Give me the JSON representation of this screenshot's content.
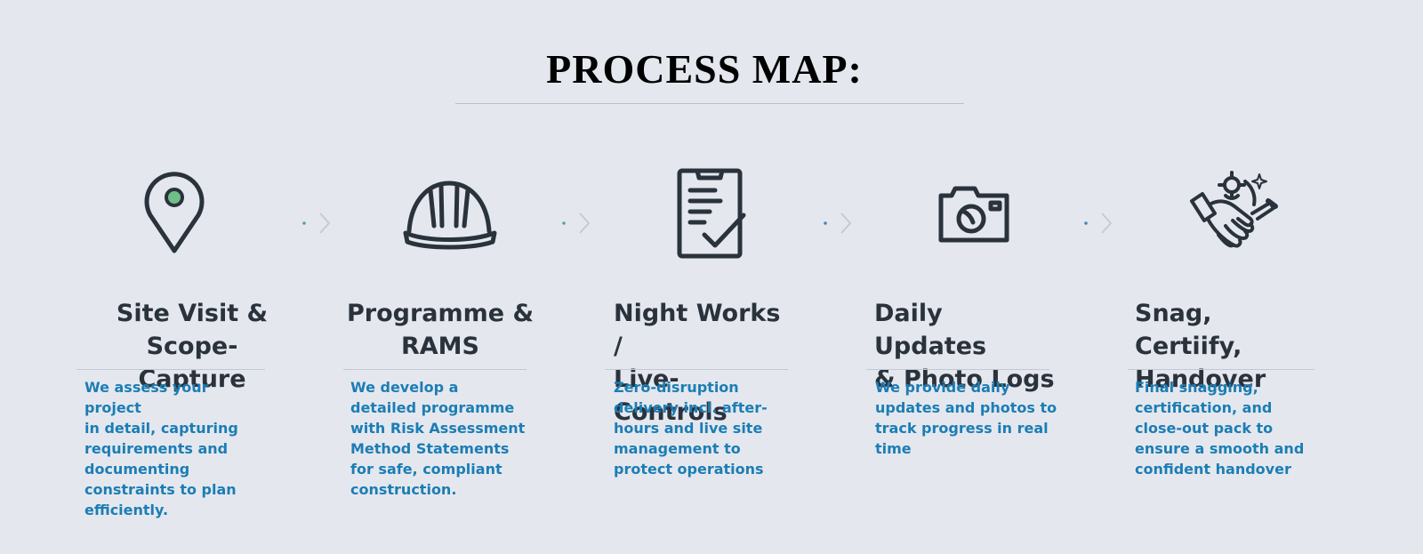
{
  "header": {
    "title": "PROCESS MAP:"
  },
  "colors": {
    "icon_stroke": "#2a323c",
    "accent_green": "#6fbf8a",
    "desc_blue": "#1c7db5",
    "connector_dot_green": "#5aa878",
    "connector_dot_blue": "#3d8bb8",
    "connector_chevron": "#c5cbd3"
  },
  "steps": [
    {
      "icon": "map-pin-icon",
      "title_line1": "Site Visit & Scope-",
      "title_line2": "Capture",
      "desc_lines": [
        "We assess your project",
        "in detail, capturing",
        "requirements and",
        "documenting",
        "constraints to plan",
        "efficiently."
      ]
    },
    {
      "icon": "hard-hat-icon",
      "title_line1": "Programme &",
      "title_line2": "RAMS",
      "desc_lines": [
        "We develop a",
        "detailed programme",
        "with Risk Assessment",
        "Method Statements",
        "for safe, compliant",
        "construction."
      ]
    },
    {
      "icon": "clipboard-check-icon",
      "title_line1": "Night Works /",
      "title_line2": "Live-Controls",
      "desc_lines": [
        "Zero-disruption",
        "delivery incl. after-",
        "hours and live site",
        "management to",
        "protect operations"
      ]
    },
    {
      "icon": "camera-icon",
      "title_line1": "Daily Updates",
      "title_line2": "& Photo Logs",
      "desc_lines": [
        "We provide daily",
        "updates and photos to",
        "track progress in real",
        "time"
      ]
    },
    {
      "icon": "handshake-icon",
      "title_line1": "Snag, Certiify,",
      "title_line2": "Handover",
      "desc_lines": [
        "Final snagging,",
        "certification, and",
        "close-out pack to",
        "ensure a smooth and",
        "confident handover"
      ]
    }
  ]
}
